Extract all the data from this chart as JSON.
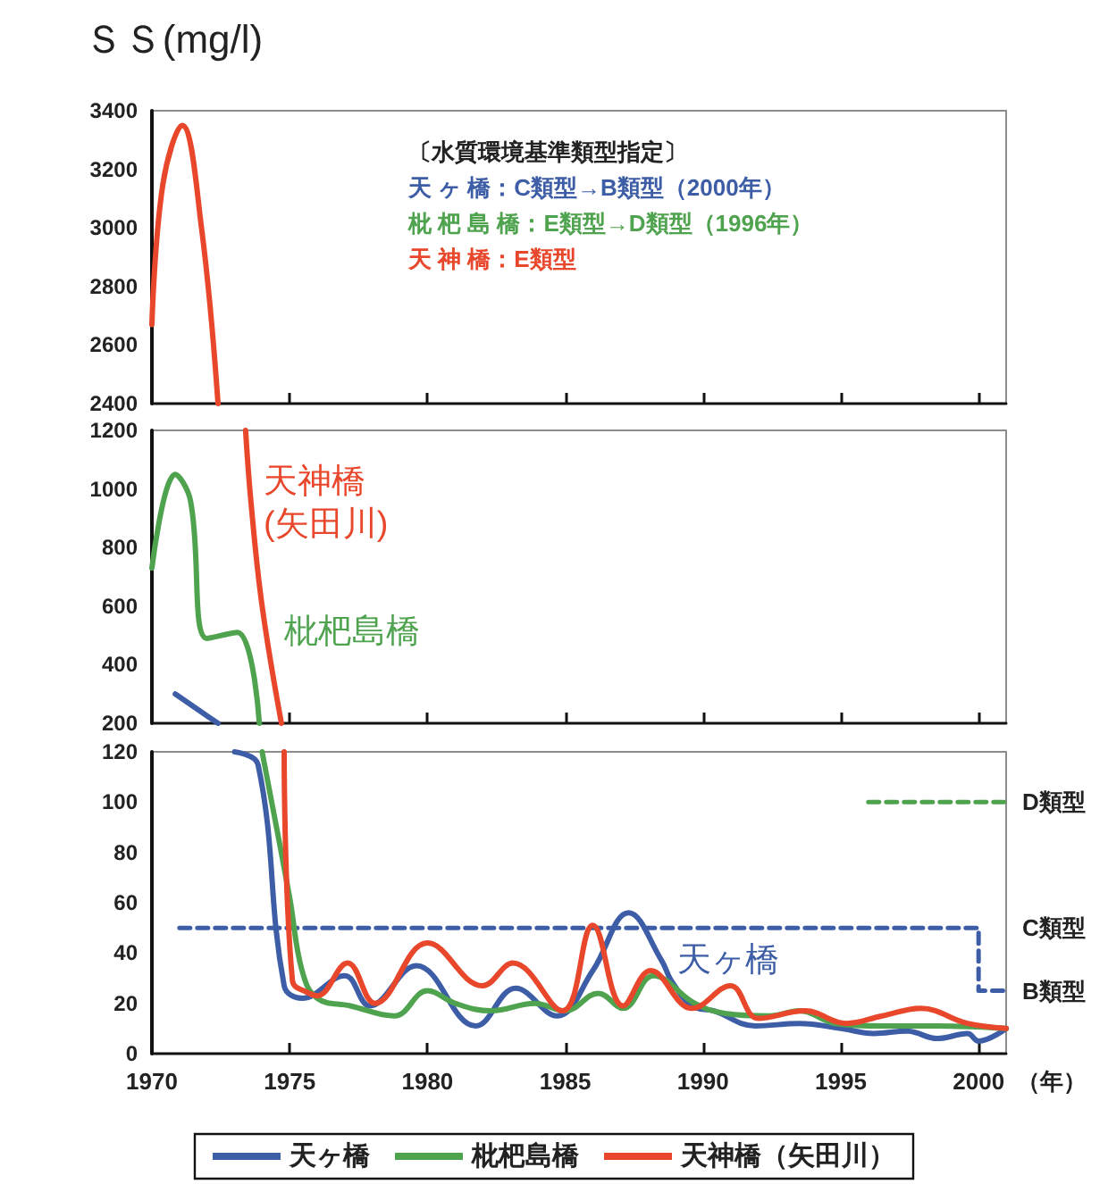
{
  "chart_data": [
    {
      "type": "line",
      "ylabel": "ＳＳ(mg/l)",
      "xlim": [
        1970,
        2001
      ],
      "xticks": [
        1970,
        1975,
        1980,
        1985,
        1990,
        1995,
        2000
      ],
      "ylim": [
        2400,
        3400
      ],
      "yticks": [
        2400,
        2600,
        2800,
        3000,
        3200,
        3400
      ],
      "tick_labels": "y",
      "marker": "none",
      "annotations": [
        "〔水質環境基準類型指定〕",
        "天 ヶ 橋：C類型→B類型（2000年）",
        "枇 杷 島 橋：E類型→D類型（1996年）",
        "天 神 橋：E類型"
      ],
      "series": [
        {
          "color": "#e8472b",
          "x": [
            1970.0,
            1970.4,
            1971.1,
            1971.8,
            1972.4
          ],
          "values": [
            2670,
            3150,
            3350,
            3000,
            2400
          ]
        }
      ]
    },
    {
      "type": "line",
      "xlim": [
        1970,
        2001
      ],
      "xticks": [
        1970,
        1975,
        1980,
        1985,
        1990,
        1995,
        2000
      ],
      "ylim": [
        200,
        1200
      ],
      "yticks": [
        200,
        400,
        600,
        800,
        1000,
        1200
      ],
      "tick_labels": "y",
      "marker": "none",
      "annotations": [
        {
          "text": "天神橋\n(矢田川)",
          "x": 1973.6,
          "y": 950
        },
        {
          "text": "枇杷島橋",
          "x": 1973.1,
          "y": 510
        }
      ],
      "series": [
        {
          "color": "#e8472b",
          "x": [
            1973.4,
            1973.6,
            1974.0,
            1974.7
          ],
          "values": [
            1200,
            950,
            600,
            200
          ]
        },
        {
          "color": "#4fa34f",
          "x": [
            1970.0,
            1970.85,
            1971.4,
            1972.0,
            1973.1,
            1973.9
          ],
          "values": [
            730,
            1050,
            960,
            490,
            510,
            200
          ]
        },
        {
          "color": "#3d5ea6",
          "x": [
            1970.85,
            1972.0,
            1972.4
          ],
          "values": [
            300,
            225,
            200
          ]
        }
      ]
    },
    {
      "type": "line",
      "xlabel": "（年）",
      "xlim": [
        1970,
        2001
      ],
      "xticks": [
        1970,
        1975,
        1980,
        1985,
        1990,
        1995,
        2000
      ],
      "ylim": [
        0,
        120
      ],
      "yticks": [
        0,
        20,
        40,
        60,
        80,
        100,
        120
      ],
      "marker": "none",
      "legend": "bottom",
      "annotations": [
        {
          "text": "D類型",
          "x": 2001,
          "y": 100
        },
        {
          "text": "C類型",
          "x": 2000,
          "y": 50
        },
        {
          "text": "B類型",
          "x": 2001,
          "y": 25
        },
        {
          "text": "天ヶ橋",
          "x": 1988.5,
          "y": 37
        }
      ],
      "series": [
        {
          "name": "天ヶ橋",
          "color": "#3d5ea6",
          "x": [
            1973.0,
            1973.85,
            1974.8,
            1975.45,
            1977.0,
            1977.9,
            1979.6,
            1981.75,
            1983.2,
            1984.7,
            1986.0,
            1987.3,
            1988.5,
            1988.85,
            1989.6,
            1990.4,
            1991.9,
            1993.5,
            1995.0,
            1996.2,
            1997.4,
            1998.5,
            1999.6,
            2000.0,
            2001.0
          ],
          "values": [
            120,
            115,
            27,
            22,
            31,
            19,
            35,
            11,
            26,
            15,
            33,
            56,
            37,
            29,
            19,
            17,
            11,
            12,
            10,
            8,
            9,
            6,
            8,
            5,
            10
          ]
        },
        {
          "name": "枇杷島橋",
          "color": "#4fa34f",
          "x": [
            1974.0,
            1975.0,
            1975.45,
            1976.0,
            1977.2,
            1978.8,
            1980.0,
            1981.0,
            1982.3,
            1983.9,
            1985.0,
            1986.2,
            1987.1,
            1988.2,
            1989.7,
            1990.8,
            1992.4,
            1993.5,
            1994.8,
            1996.5,
            1998.5,
            2001.0
          ],
          "values": [
            120,
            62,
            33,
            22,
            19,
            15,
            25,
            20,
            17,
            20,
            17,
            24,
            18,
            31,
            20,
            16,
            15,
            17,
            12,
            11,
            11,
            10
          ]
        },
        {
          "name": "天神橋（矢田川）",
          "color": "#e8472b",
          "x": [
            1974.8,
            1975.1,
            1975.7,
            1976.0,
            1977.1,
            1978.1,
            1980.0,
            1982.0,
            1983.1,
            1984.9,
            1986.0,
            1987.1,
            1988.1,
            1989.6,
            1991.0,
            1992.0,
            1993.7,
            1995.2,
            1996.5,
            1997.9,
            1999.6,
            2001.0
          ],
          "values": [
            120,
            29,
            24,
            23,
            36,
            20,
            44,
            27,
            36,
            17,
            51,
            19,
            33,
            18,
            27,
            14,
            17,
            12,
            15,
            18,
            12,
            10
          ]
        },
        {
          "type": "step",
          "color": "#3d5ea6",
          "line_style": "dashed",
          "x": [
            1971,
            2000,
            2001
          ],
          "values": [
            50,
            25,
            25
          ]
        },
        {
          "type": "step",
          "color": "#4fa34f",
          "line_style": "dashed",
          "x": [
            1996,
            2001
          ],
          "values": [
            100,
            100
          ]
        }
      ]
    }
  ]
}
